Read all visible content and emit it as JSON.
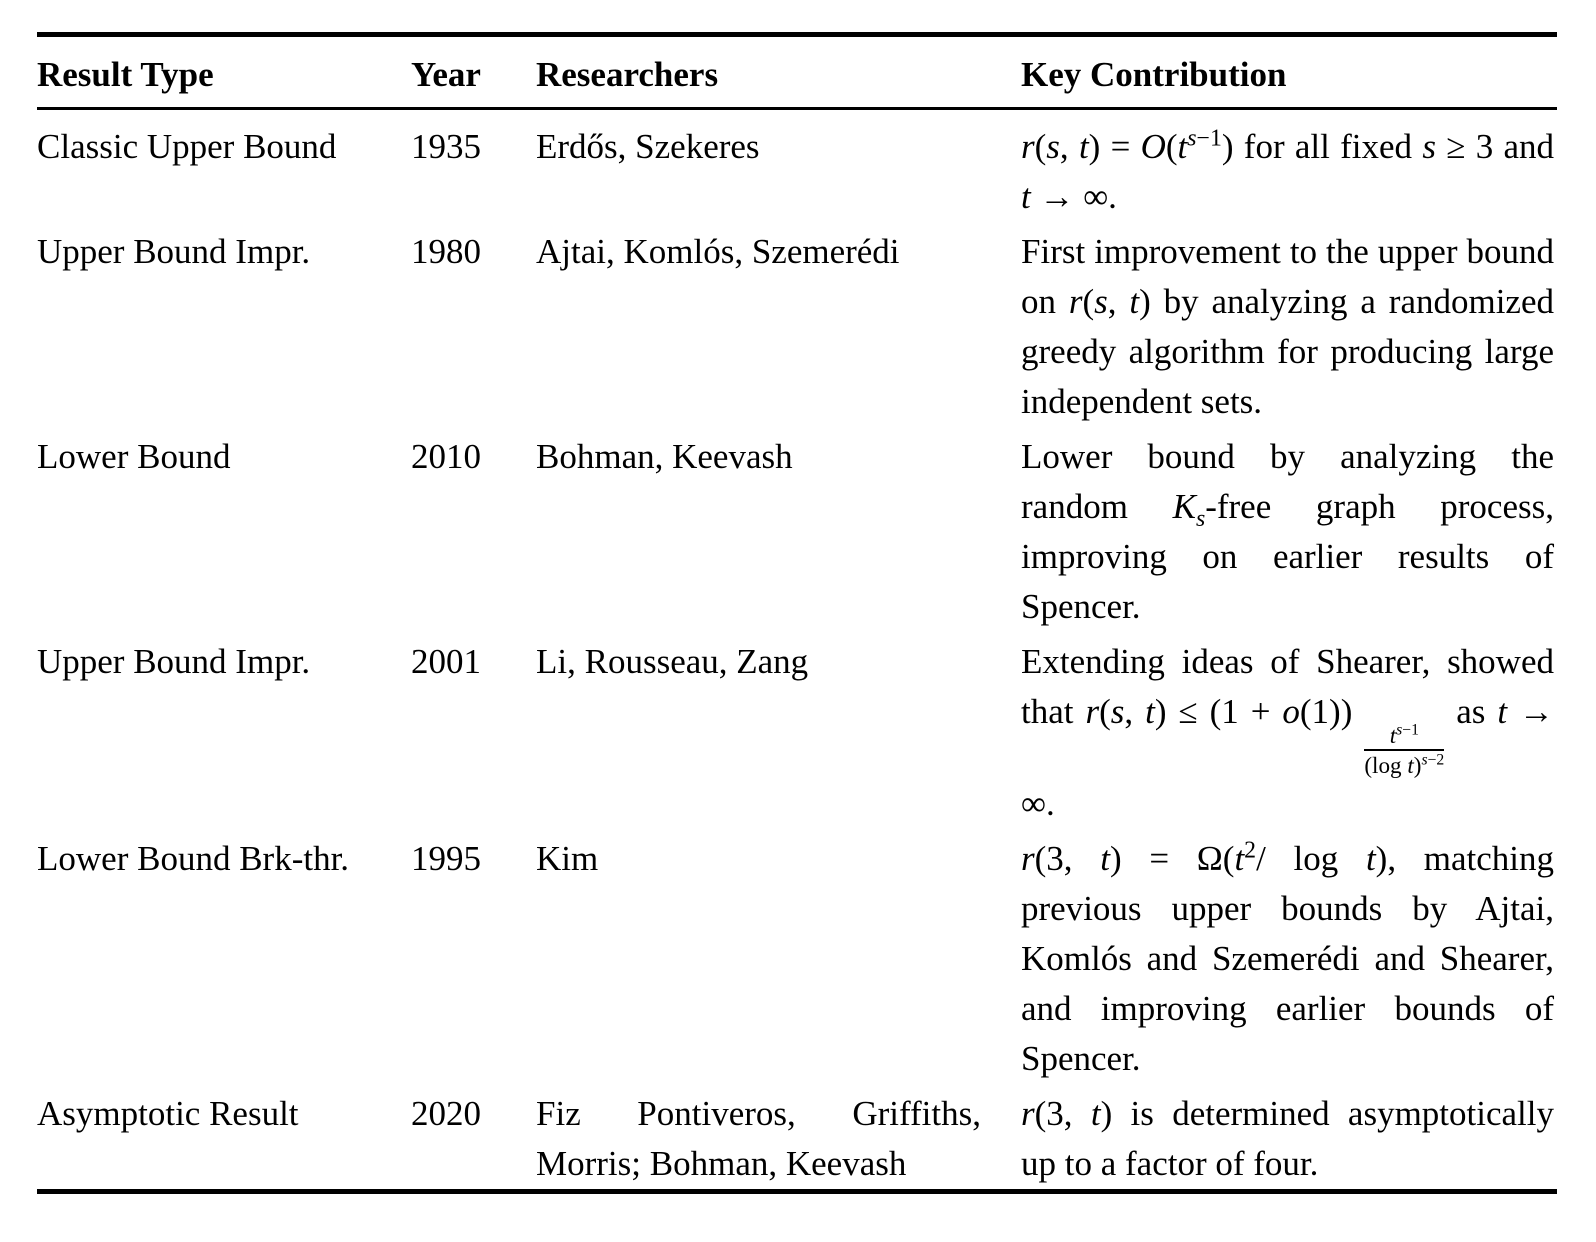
{
  "table": {
    "headers": [
      "Result Type",
      "Year",
      "Researchers",
      "Key Contribution"
    ],
    "rows": [
      {
        "result_type": "Classic Upper Bound",
        "year": "1935",
        "researchers": "Erdős, Szekeres",
        "contribution_html": "<i>r</i>(<i>s</i>, <i>t</i>) = <i>O</i>(<i>t</i><sup><i>s</i>−1</sup>) for all fixed <i>s</i> ≥ 3 and <i>t</i> → ∞."
      },
      {
        "result_type": "Upper Bound Impr.",
        "year": "1980",
        "researchers": "Ajtai, Komlós, Szemerédi",
        "contribution_html": "First improvement to the upper bound on <i>r</i>(<i>s</i>, <i>t</i>) by analyzing a randomized greedy algorithm for producing large independent sets."
      },
      {
        "result_type": "Lower Bound",
        "year": "2010",
        "researchers": "Bohman, Keevash",
        "contribution_html": "Lower bound by analyzing the random <i>K</i><sub><i>s</i></sub>-free graph process, improving on earlier results of Spencer."
      },
      {
        "result_type": "Upper Bound Impr.",
        "year": "2001",
        "researchers": "Li, Rousseau, Zang",
        "contribution_html": "Extending ideas of Shearer, showed that <i>r</i>(<i>s</i>, <i>t</i>) ≤ (1 + <i>o</i>(1)) <x-frac><x-n><i>t</i><sup><i>s</i>−1</sup></x-n><x-d>(log <i>t</i>)<sup><i>s</i>−2</sup></x-d></x-frac> as <i>t</i> → ∞."
      },
      {
        "result_type": "Lower Bound Brk-thr.",
        "year": "1995",
        "researchers": "Kim",
        "contribution_html": "<i>r</i>(3, <i>t</i>) = Ω(<i>t</i><sup>2</sup>/ log <i>t</i>), matching previous upper bounds by Ajtai, Komlós and Szemerédi and Shearer, and improving earlier bounds of Spencer."
      },
      {
        "result_type": "Asymptotic Result",
        "year": "2020",
        "researchers": "Fiz Pontiveros, Griffiths, Morris; Bohman, Keevash",
        "contribution_html": "<i>r</i>(3, <i>t</i>) is determined asymptotically up to a factor of four."
      }
    ]
  }
}
